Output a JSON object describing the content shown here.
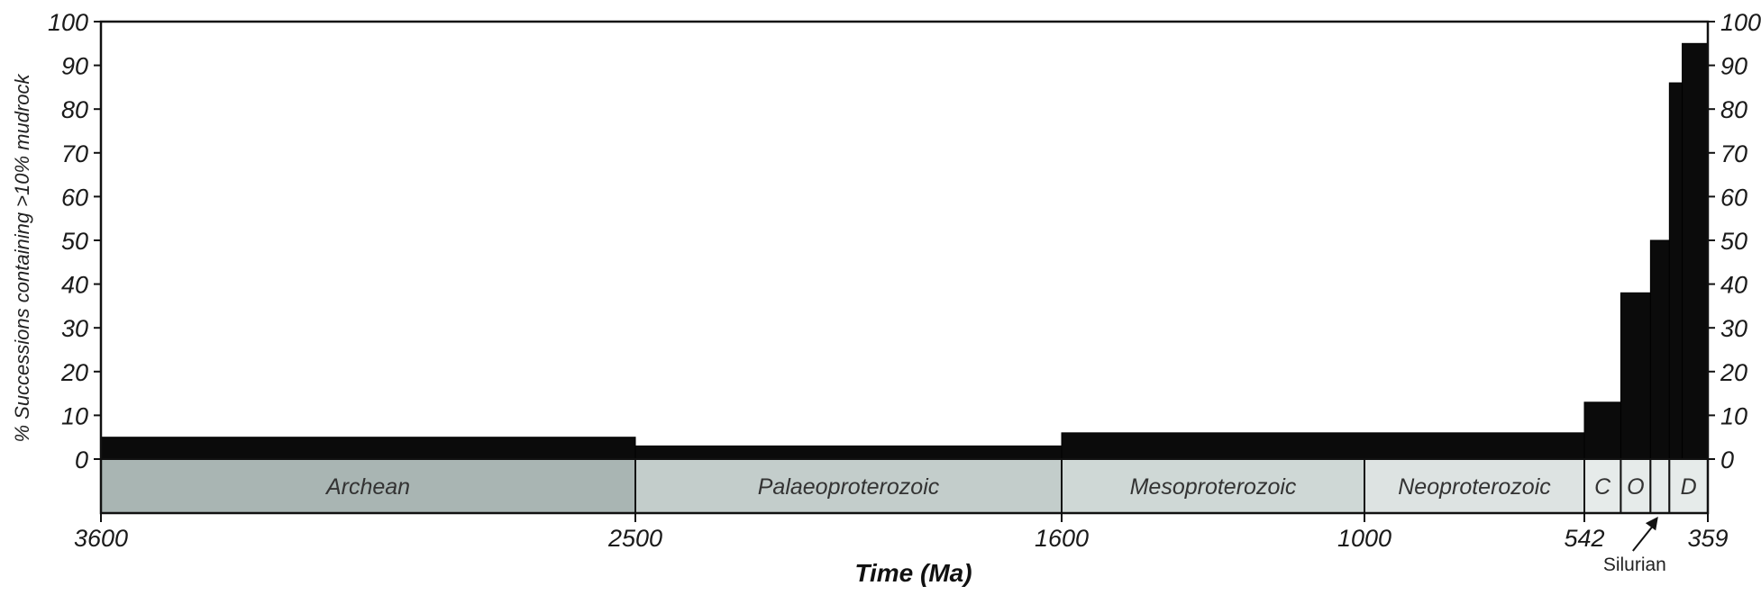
{
  "chart_data": {
    "type": "bar",
    "title": "",
    "xlabel": "Time (Ma)",
    "ylabel": "% Successions containing >10% mudrock",
    "ylim": [
      0,
      100
    ],
    "y_ticks": [
      "0",
      "10",
      "20",
      "30",
      "40",
      "50",
      "60",
      "70",
      "80",
      "90",
      "100"
    ],
    "x_ticks": [
      "3600",
      "2500",
      "1600",
      "1000",
      "542",
      "359"
    ],
    "x_axis_direction": "reversed (older to the left)",
    "bars": [
      {
        "start_ma": 3600,
        "end_ma": 2500,
        "value": 5
      },
      {
        "start_ma": 2500,
        "end_ma": 1600,
        "value": 3
      },
      {
        "start_ma": 1600,
        "end_ma": 542,
        "value": 6
      },
      {
        "start_ma": 542,
        "end_ma": 488,
        "value": 13
      },
      {
        "start_ma": 488,
        "end_ma": 444,
        "value": 38
      },
      {
        "start_ma": 444,
        "end_ma": 416,
        "value": 50
      },
      {
        "start_ma": 416,
        "end_ma": 397,
        "value": 86
      },
      {
        "start_ma": 397,
        "end_ma": 359,
        "value": 95
      }
    ],
    "eras": [
      {
        "label": "Archean",
        "start_ma": 3600,
        "end_ma": 2500,
        "color": "#a9b5b3"
      },
      {
        "label": "Palaeoproterozoic",
        "start_ma": 2500,
        "end_ma": 1600,
        "color": "#c3cdcb"
      },
      {
        "label": "Mesoproterozoic",
        "start_ma": 1600,
        "end_ma": 1000,
        "color": "#cfd8d6"
      },
      {
        "label": "Neoproterozoic",
        "start_ma": 1000,
        "end_ma": 542,
        "color": "#dde3e2"
      },
      {
        "label": "C",
        "start_ma": 542,
        "end_ma": 488,
        "color": "#e6ebea"
      },
      {
        "label": "O",
        "start_ma": 488,
        "end_ma": 444,
        "color": "#e6ebea"
      },
      {
        "label": "",
        "start_ma": 444,
        "end_ma": 416,
        "color": "#e6ebea"
      },
      {
        "label": "D",
        "start_ma": 416,
        "end_ma": 359,
        "color": "#e6ebea"
      }
    ],
    "annotation": "Silurian",
    "bar_color": "#0b0b0b",
    "grid": false
  }
}
